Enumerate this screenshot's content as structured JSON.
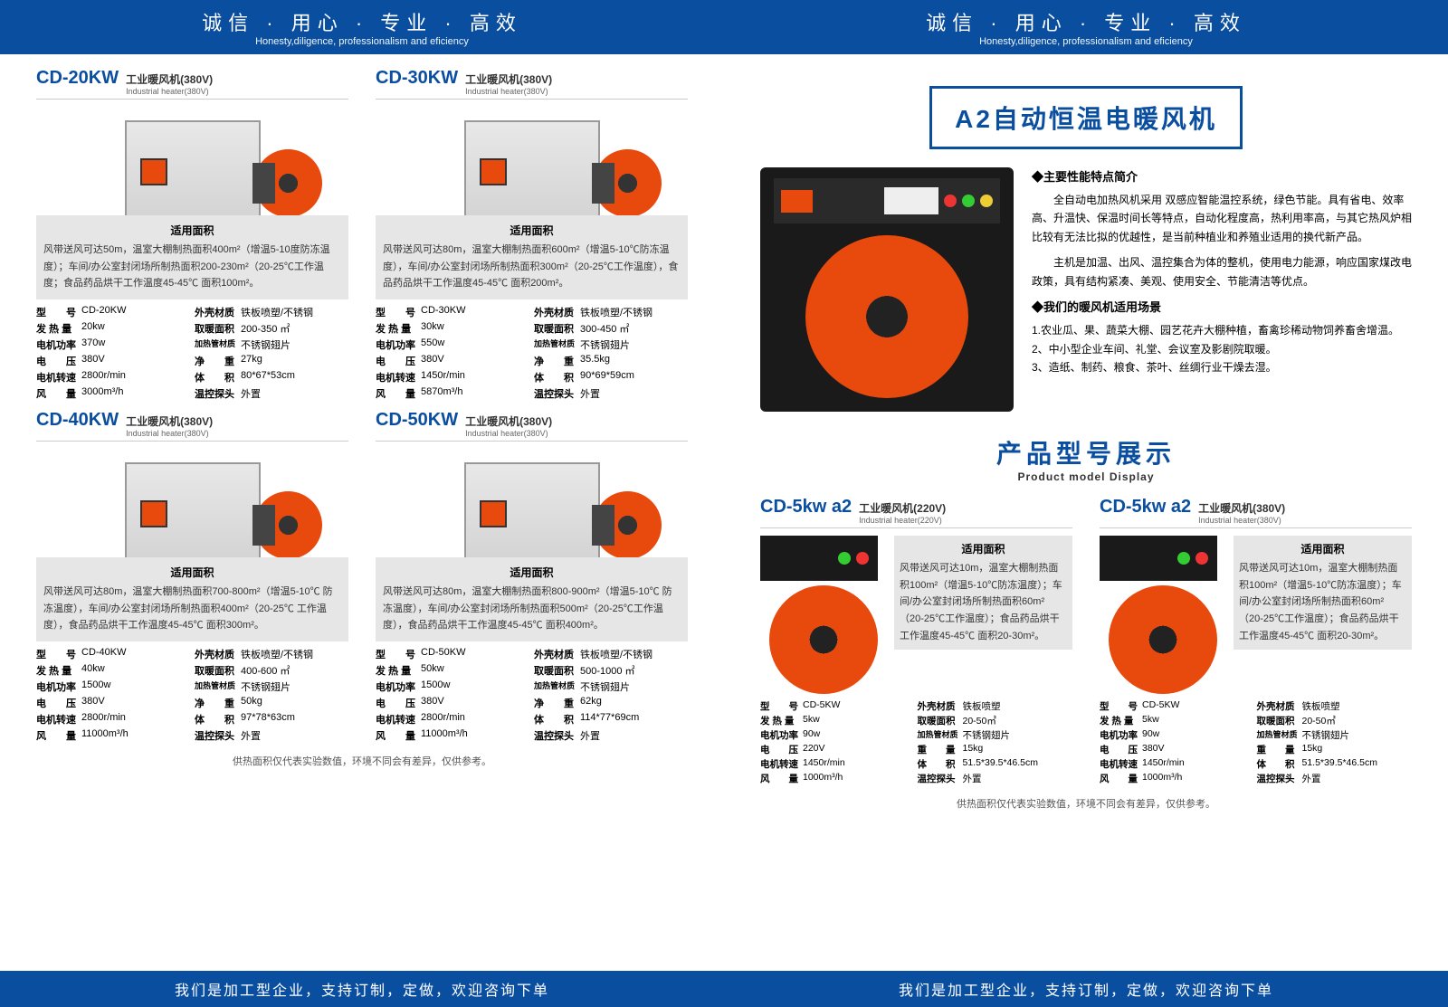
{
  "header": {
    "cn": "诚信 · 用心 · 专业 · 高效",
    "en": "Honesty,diligence, professionalism and eficiency"
  },
  "footer": "我们是加工型企业，支持订制，定做，欢迎咨询下单",
  "desc_title": "适用面积",
  "foot_note": "供热面积仅代表实验数值，环境不同会有差异，仅供参考。",
  "page1": {
    "products": [
      {
        "code": "CD-20KW",
        "sub_cn": "工业暖风机(380V)",
        "sub_en": "Industrial heater(380V)",
        "desc": "风带送风可达50m，温室大棚制热面积400m²（增温5-10度防冻温度）；车间/办公室封闭场所制热面积200-230m²（20-25℃工作温度；食品药品烘干工作温度45-45℃ 面积100m²。",
        "specs": [
          [
            "型　　号",
            "CD-20KW",
            "外壳材质",
            "铁板喷塑/不锈钢"
          ],
          [
            "发 热 量",
            "20kw",
            "取暖面积",
            "200-350 ㎡"
          ],
          [
            "电机功率",
            "370w",
            "加热管材质",
            "不锈钢翅片"
          ],
          [
            "电　　压",
            "380V",
            "净　　重",
            "27kg"
          ],
          [
            "电机转速",
            "2800r/min",
            "体　　积",
            "80*67*53cm"
          ],
          [
            "风　　量",
            "3000m³/h",
            "温控探头",
            "外置"
          ]
        ]
      },
      {
        "code": "CD-30KW",
        "sub_cn": "工业暖风机(380V)",
        "sub_en": "Industrial heater(380V)",
        "desc": "风带送风可达80m，温室大棚制热面积600m²（增温5-10℃防冻温度），车间/办公室封闭场所制热面积300m²（20-25℃工作温度），食品药品烘干工作温度45-45℃ 面积200m²。",
        "specs": [
          [
            "型　　号",
            "CD-30KW",
            "外壳材质",
            "铁板喷塑/不锈钢"
          ],
          [
            "发 热 量",
            "30kw",
            "取暖面积",
            "300-450 ㎡"
          ],
          [
            "电机功率",
            "550w",
            "加热管材质",
            "不锈钢翅片"
          ],
          [
            "电　　压",
            "380V",
            "净　　重",
            "35.5kg"
          ],
          [
            "电机转速",
            "1450r/min",
            "体　　积",
            "90*69*59cm"
          ],
          [
            "风　　量",
            "5870m³/h",
            "温控探头",
            "外置"
          ]
        ]
      },
      {
        "code": "CD-40KW",
        "sub_cn": "工业暖风机(380V)",
        "sub_en": "Industrial heater(380V)",
        "desc": "风带送风可达80m，温室大棚制热面积700-800m²（增温5-10℃ 防冻温度），车间/办公室封闭场所制热面积400m²（20-25℃ 工作温度），食品药品烘干工作温度45-45℃ 面积300m²。",
        "specs": [
          [
            "型　　号",
            "CD-40KW",
            "外壳材质",
            "铁板喷塑/不锈钢"
          ],
          [
            "发 热 量",
            "40kw",
            "取暖面积",
            "400-600 ㎡"
          ],
          [
            "电机功率",
            "1500w",
            "加热管材质",
            "不锈钢翅片"
          ],
          [
            "电　　压",
            "380V",
            "净　　重",
            "50kg"
          ],
          [
            "电机转速",
            "2800r/min",
            "体　　积",
            "97*78*63cm"
          ],
          [
            "风　　量",
            "11000m³/h",
            "温控探头",
            "外置"
          ]
        ]
      },
      {
        "code": "CD-50KW",
        "sub_cn": "工业暖风机(380V)",
        "sub_en": "Industrial heater(380V)",
        "desc": "风带送风可达80m，温室大棚制热面积800-900m²（增温5-10℃ 防冻温度），车间/办公室封闭场所制热面积500m²（20-25℃工作温度），食品药品烘干工作温度45-45℃ 面积400m²。",
        "specs": [
          [
            "型　　号",
            "CD-50KW",
            "外壳材质",
            "铁板喷塑/不锈钢"
          ],
          [
            "发 热 量",
            "50kw",
            "取暖面积",
            "500-1000 ㎡"
          ],
          [
            "电机功率",
            "1500w",
            "加热管材质",
            "不锈钢翅片"
          ],
          [
            "电　　压",
            "380V",
            "净　　重",
            "62kg"
          ],
          [
            "电机转速",
            "2800r/min",
            "体　　积",
            "114*77*69cm"
          ],
          [
            "风　　量",
            "11000m³/h",
            "温控探头",
            "外置"
          ]
        ]
      }
    ]
  },
  "page2": {
    "title": "A2自动恒温电暖风机",
    "intro_h1": "◆主要性能特点简介",
    "intro_p1": "全自动电加热风机采用 双感应智能温控系统，绿色节能。具有省电、效率高、升温快、保温时间长等特点，自动化程度高，热利用率高，与其它热风炉相比较有无法比拟的优越性，是当前种植业和养殖业适用的换代新产品。",
    "intro_p2": "主机是加温、出风、温控集合为体的整机，使用电力能源，响应国家煤改电政策，具有结构紧凑、美观、使用安全、节能清洁等优点。",
    "intro_h2": "◆我们的暖风机适用场景",
    "intro_l1": "1.农业瓜、果、蔬菜大棚、园艺花卉大棚种植，畜禽珍稀动物饲养畜舍增温。",
    "intro_l2": "2、中小型企业车间、礼堂、会议室及影剧院取暖。",
    "intro_l3": "3、造纸、制药、粮食、茶叶、丝绸行业干燥去湿。",
    "section_cn": "产品型号展示",
    "section_en": "Product model Display",
    "products": [
      {
        "code": "CD-5kw a2",
        "sub_cn": "工业暖风机(220V)",
        "sub_en": "Industrial heater(220V)",
        "desc": "风带送风可达10m，温室大棚制热面积100m²（增温5-10℃防冻温度）；车间/办公室封闭场所制热面积60m²（20-25℃工作温度）；食品药品烘干工作温度45-45℃ 面积20-30m²。",
        "specs": [
          [
            "型　　号",
            "CD-5KW",
            "外壳材质",
            "铁板喷塑"
          ],
          [
            "发 热 量",
            "5kw",
            "取暖面积",
            "20-50㎡"
          ],
          [
            "电机功率",
            "90w",
            "加热管材质",
            "不锈钢翅片"
          ],
          [
            "电　　压",
            "220V",
            "重　　量",
            "15kg"
          ],
          [
            "电机转速",
            "1450r/min",
            "体　　积",
            "51.5*39.5*46.5cm"
          ],
          [
            "风　　量",
            "1000m³/h",
            "温控探头",
            "外置"
          ]
        ]
      },
      {
        "code": "CD-5kw a2",
        "sub_cn": "工业暖风机(380V)",
        "sub_en": "Industrial heater(380V)",
        "desc": "风带送风可达10m，温室大棚制热面积100m²（增温5-10℃防冻温度）；车间/办公室封闭场所制热面积60m²（20-25℃工作温度）；食品药品烘干工作温度45-45℃ 面积20-30m²。",
        "specs": [
          [
            "型　　号",
            "CD-5KW",
            "外壳材质",
            "铁板喷塑"
          ],
          [
            "发 热 量",
            "5kw",
            "取暖面积",
            "20-50㎡"
          ],
          [
            "电机功率",
            "90w",
            "加热管材质",
            "不锈钢翅片"
          ],
          [
            "电　　压",
            "380V",
            "重　　量",
            "15kg"
          ],
          [
            "电机转速",
            "1450r/min",
            "体　　积",
            "51.5*39.5*46.5cm"
          ],
          [
            "风　　量",
            "1000m³/h",
            "温控探头",
            "外置"
          ]
        ]
      }
    ]
  },
  "colors": {
    "brand": "#0a4ea0",
    "accent": "#e84a0e",
    "grey_bg": "#e6e6e6"
  }
}
